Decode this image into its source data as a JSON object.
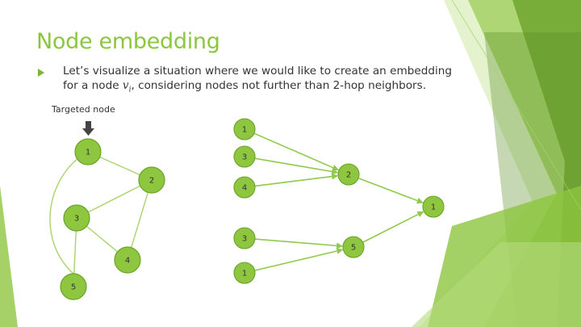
{
  "slide": {
    "title": "Node embedding",
    "bullet": {
      "text_before": "Let’s visualize a situation where we would like to create an embedding for a node ",
      "var_main": "v",
      "var_sub": "i",
      "text_after": ", considering nodes not further than 2-hop neighbors."
    },
    "target_label": "Targeted node"
  },
  "colors": {
    "title": "#8cc63f",
    "node_fill": "#8ec63f",
    "node_stroke": "#6aa32a",
    "edge": "#a9d36b",
    "arrow": "#8fca4a",
    "pointer": "#444444"
  },
  "left_graph": {
    "nodes": [
      {
        "id": "1",
        "label": "1"
      },
      {
        "id": "2",
        "label": "2"
      },
      {
        "id": "3",
        "label": "3"
      },
      {
        "id": "4",
        "label": "4"
      },
      {
        "id": "5",
        "label": "5"
      }
    ],
    "edges": [
      [
        "1",
        "2"
      ],
      [
        "1",
        "5"
      ],
      [
        "2",
        "3"
      ],
      [
        "2",
        "4"
      ],
      [
        "3",
        "4"
      ],
      [
        "3",
        "5"
      ]
    ]
  },
  "right_tree": {
    "nodes": [
      {
        "id": "a1",
        "label": "1"
      },
      {
        "id": "a3",
        "label": "3"
      },
      {
        "id": "a4",
        "label": "4"
      },
      {
        "id": "b2",
        "label": "2"
      },
      {
        "id": "c1",
        "label": "1"
      },
      {
        "id": "d3",
        "label": "3"
      },
      {
        "id": "d1",
        "label": "1"
      },
      {
        "id": "e5",
        "label": "5"
      }
    ],
    "arrows": [
      [
        "a1",
        "b2"
      ],
      [
        "a3",
        "b2"
      ],
      [
        "a4",
        "b2"
      ],
      [
        "b2",
        "c1"
      ],
      [
        "d3",
        "e5"
      ],
      [
        "d1",
        "e5"
      ],
      [
        "e5",
        "c1"
      ]
    ]
  }
}
